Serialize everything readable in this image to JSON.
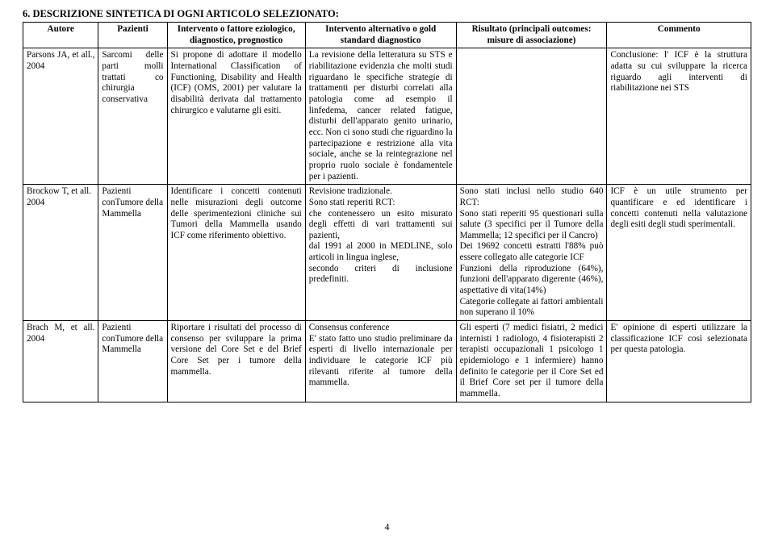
{
  "heading": "6. DESCRIZIONE SINTETICA DI OGNI ARTICOLO SELEZIONATO:",
  "page_number": "4",
  "table": {
    "columns": [
      {
        "label": "Autore"
      },
      {
        "label": "Pazienti"
      },
      {
        "label": "Intervento o fattore eziologico, diagnostico, prognostico"
      },
      {
        "label": "Intervento alternativo o gold standard diagnostico"
      },
      {
        "label": "Risultato (principali outcomes: misure di associazione)"
      },
      {
        "label": "Commento"
      }
    ],
    "rows": [
      {
        "autore": "Parsons JA, et all., 2004",
        "pazienti": "Sarcomi delle parti molli trattati co chirurgia conservativa",
        "int1": "Si propone di adottare il modello International Classification of Functioning, Disability and Health (ICF) (OMS, 2001) per valutare la disabilità derivata dal trattamento chirurgico e valutarne gli esiti.",
        "int2": "La revisione della letteratura su STS e riabilitazione evidenzia che molti studi riguardano le specifiche strategie di trattamenti per disturbi correlati alla patologia come ad esempio il linfedema, cancer related fatigue, disturbi dell'apparato genito urinario, ecc. Non ci sono studi che riguardino la partecipazione e restrizione alla vita sociale, anche se la reintegrazione nel proprio ruolo sociale è fondamentele per i pazienti.",
        "ris": "",
        "comm": "Conclusione: l' ICF è la struttura adatta su cui sviluppare la ricerca riguardo agli interventi di riabilitazione nei STS"
      },
      {
        "autore": "Brockow T, et all.\n2004",
        "pazienti": "Pazienti conTumore della Mammella",
        "int1": "Identificare i concetti contenuti nelle misurazioni degli outcome delle sperimentezioni cliniche sui Tumori della Mammella usando ICF come riferimento obiettivo.",
        "int2": "Revisione tradizionale.\nSono stati reperiti RCT:\nche contenessero un esito misurato degli effetti di vari trattamenti sui pazienti,\ndal 1991 al 2000 in MEDLINE, solo articoli in lingua inglese,\nsecondo criteri di inclusione predefiniti.",
        "ris": "Sono stati inclusi nello studio 640 RCT:\nSono stati reperiti 95 questionari sulla salute (3 specifici per il Tumore della Mammella; 12 specifici per il Cancro)\nDei 19692 concetti estratti l'88% può essere collegato alle categorie ICF\nFunzioni della riproduzione (64%), funzioni dell'apparato digerente (46%), aspettative di vita(14%)\nCategorie collegate ai fattori ambientali non superano il 10%",
        "comm": "ICF è un utile strumento per quantificare e ed identificare i concetti contenuti nella valutazione degli esiti degli studi sperimentali."
      },
      {
        "autore": "Brach M, et all. 2004",
        "pazienti": "Pazienti conTumore della Mammella",
        "int1": "Riportare i risultati del processo di consenso per sviluppare la prima versione del Core Set e del Brief Core Set per i tumore della mammella.",
        "int2": "Consensus conference\nE' stato fatto uno studio preliminare da esperti di livello internazionale per individuare le categorie ICF più rilevanti riferite al tumore della mammella.",
        "ris": "Gli esperti (7 medici fisiatri, 2 medici internisti 1 radiologo, 4 fisioterapisti 2 terapisti occupazionali 1 psicologo 1 epidemiologo e 1 infermiere) hanno definito le categorie per il Core Set ed il Brief Core set per il tumore della mammella.",
        "comm": "E' opinione di esperti utilizzare la classificazione ICF così selezionata per questa patologia."
      }
    ]
  }
}
